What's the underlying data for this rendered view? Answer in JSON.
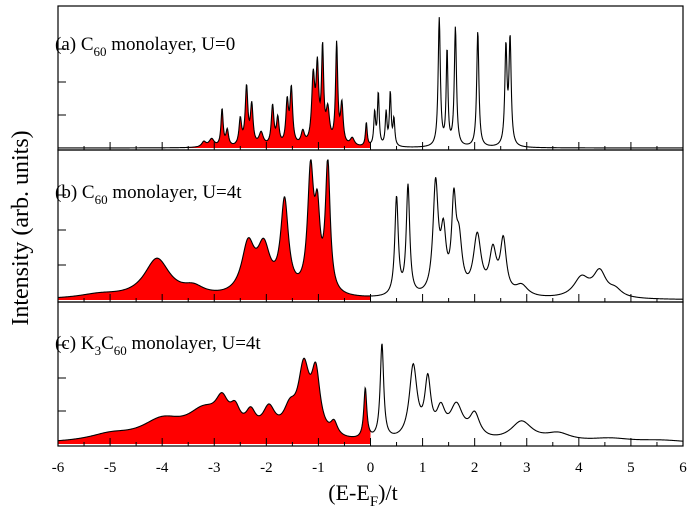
{
  "chart_data": {
    "type": "area",
    "xlabel": "(E-E",
    "xlabel_sub": "F",
    "xlabel_tail": ")/t",
    "ylabel": "Intensity (arb. units)",
    "xlim": [
      -6,
      6
    ],
    "xticks": [
      "-6",
      "-5",
      "-4",
      "-3",
      "-2",
      "-1",
      "0",
      "1",
      "2",
      "3",
      "4",
      "5",
      "6"
    ],
    "fermi_level": 0,
    "fill_color": "#ff0000",
    "line_color": "#000000",
    "panels": [
      {
        "label_pre": "(a) C",
        "label_sub": "60",
        "label_post": " monolayer, U=0",
        "ylim": [
          0,
          1.0
        ],
        "baseline": 0.0,
        "peaks": [
          [
            -3.2,
            0.04,
            0.05
          ],
          [
            -3.05,
            0.06,
            0.06
          ],
          [
            -2.85,
            0.28,
            0.025
          ],
          [
            -2.75,
            0.12,
            0.03
          ],
          [
            -2.5,
            0.2,
            0.03
          ],
          [
            -2.38,
            0.44,
            0.03
          ],
          [
            -2.28,
            0.3,
            0.03
          ],
          [
            -2.1,
            0.1,
            0.05
          ],
          [
            -1.88,
            0.3,
            0.03
          ],
          [
            -1.78,
            0.2,
            0.03
          ],
          [
            -1.6,
            0.32,
            0.03
          ],
          [
            -1.52,
            0.42,
            0.03
          ],
          [
            -1.3,
            0.1,
            0.04
          ],
          [
            -1.1,
            0.5,
            0.035
          ],
          [
            -1.02,
            0.55,
            0.03
          ],
          [
            -0.92,
            0.7,
            0.025
          ],
          [
            -0.82,
            0.25,
            0.04
          ],
          [
            -0.65,
            0.76,
            0.025
          ],
          [
            -0.55,
            0.3,
            0.03
          ],
          [
            -0.35,
            0.06,
            0.05
          ],
          [
            -0.08,
            0.18,
            0.02
          ],
          [
            0.08,
            0.25,
            0.02
          ],
          [
            0.15,
            0.4,
            0.02
          ],
          [
            0.3,
            0.25,
            0.02
          ],
          [
            0.38,
            0.4,
            0.02
          ],
          [
            0.45,
            0.2,
            0.02
          ],
          [
            1.32,
            0.97,
            0.025
          ],
          [
            1.47,
            0.72,
            0.02
          ],
          [
            1.63,
            0.9,
            0.025
          ],
          [
            2.06,
            0.88,
            0.025
          ],
          [
            2.6,
            0.74,
            0.025
          ],
          [
            2.68,
            0.8,
            0.025
          ]
        ]
      },
      {
        "label_pre": "(b) C",
        "label_sub": "60",
        "label_post": " monolayer, U=4t",
        "ylim": [
          0,
          1.0
        ],
        "baseline": 0.0,
        "peaks": [
          [
            -5.2,
            0.03,
            0.5
          ],
          [
            -4.1,
            0.28,
            0.3
          ],
          [
            -3.4,
            0.06,
            0.25
          ],
          [
            -2.35,
            0.35,
            0.15
          ],
          [
            -2.05,
            0.32,
            0.15
          ],
          [
            -1.65,
            0.65,
            0.09
          ],
          [
            -1.15,
            0.85,
            0.07
          ],
          [
            -1.02,
            0.5,
            0.06
          ],
          [
            -0.82,
            0.92,
            0.055
          ],
          [
            0.5,
            0.7,
            0.04
          ],
          [
            0.72,
            0.78,
            0.04
          ],
          [
            1.25,
            0.78,
            0.06
          ],
          [
            1.4,
            0.4,
            0.06
          ],
          [
            1.6,
            0.6,
            0.05
          ],
          [
            1.7,
            0.35,
            0.07
          ],
          [
            2.05,
            0.42,
            0.09
          ],
          [
            2.35,
            0.3,
            0.08
          ],
          [
            2.55,
            0.38,
            0.07
          ],
          [
            2.9,
            0.08,
            0.15
          ],
          [
            4.05,
            0.14,
            0.18
          ],
          [
            4.4,
            0.18,
            0.15
          ],
          [
            4.7,
            0.05,
            0.15
          ]
        ]
      },
      {
        "label_pre": "(c) K",
        "label_sub1": "3",
        "label_mid": "C",
        "label_sub": "60",
        "label_post": " monolayer, U=4t",
        "ylim": [
          0,
          1.0
        ],
        "baseline": 0.0,
        "peaks": [
          [
            -5.0,
            0.05,
            0.5
          ],
          [
            -4.0,
            0.15,
            0.5
          ],
          [
            -3.2,
            0.2,
            0.4
          ],
          [
            -2.85,
            0.2,
            0.15
          ],
          [
            -2.6,
            0.15,
            0.12
          ],
          [
            -2.3,
            0.15,
            0.12
          ],
          [
            -1.95,
            0.2,
            0.15
          ],
          [
            -1.55,
            0.18,
            0.15
          ],
          [
            -1.28,
            0.5,
            0.13
          ],
          [
            -1.05,
            0.45,
            0.1
          ],
          [
            -0.7,
            0.1,
            0.08
          ],
          [
            -0.1,
            0.38,
            0.035
          ],
          [
            0.22,
            0.72,
            0.04
          ],
          [
            0.82,
            0.55,
            0.09
          ],
          [
            1.1,
            0.42,
            0.07
          ],
          [
            1.35,
            0.2,
            0.1
          ],
          [
            1.65,
            0.25,
            0.15
          ],
          [
            2.0,
            0.18,
            0.12
          ],
          [
            2.9,
            0.15,
            0.25
          ],
          [
            3.6,
            0.06,
            0.3
          ],
          [
            4.6,
            0.03,
            0.5
          ],
          [
            5.6,
            0.02,
            0.6
          ]
        ]
      }
    ]
  }
}
